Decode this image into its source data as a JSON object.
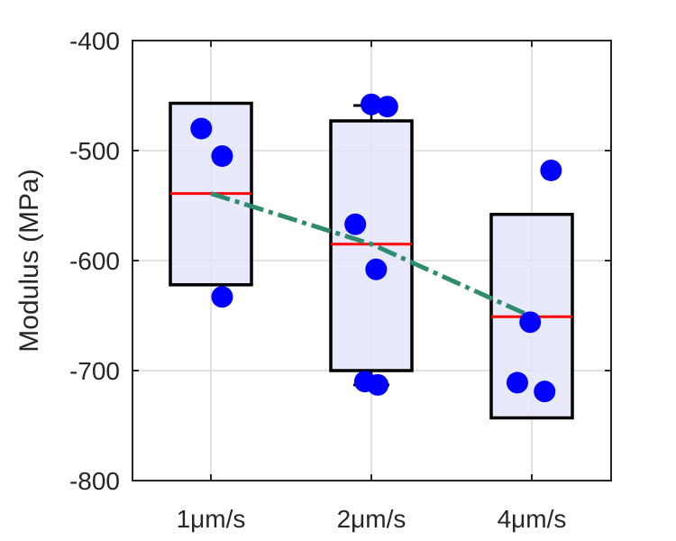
{
  "chart_data": {
    "type": "box",
    "categories": [
      "1μm/s",
      "2μm/s",
      "4μm/s"
    ],
    "xlabel": "",
    "ylabel": "Modulus (MPa)",
    "ylim": [
      -800,
      -400
    ],
    "yticks": [
      -400,
      -500,
      -600,
      -700,
      -800
    ],
    "grid": true,
    "boxes": [
      {
        "category": "1μm/s",
        "q1": -622,
        "median": -539,
        "q3": -457,
        "whisker_low": -622,
        "whisker_high": -457
      },
      {
        "category": "2μm/s",
        "q1": -700,
        "median": -585,
        "q3": -473,
        "whisker_low": -713,
        "whisker_high": -459
      },
      {
        "category": "4μm/s",
        "q1": -743,
        "median": -651,
        "q3": -558,
        "whisker_low": -743,
        "whisker_high": -558
      }
    ],
    "points": [
      {
        "category": "1μm/s",
        "values": [
          -480,
          -505,
          -633
        ],
        "offsets": [
          -0.06,
          0.07,
          0.07
        ]
      },
      {
        "category": "2μm/s",
        "values": [
          -567,
          -608,
          -710,
          -713,
          -458,
          -460
        ],
        "offsets": [
          -0.1,
          0.03,
          -0.04,
          0.04,
          0.0,
          0.1
        ]
      },
      {
        "category": "4μm/s",
        "values": [
          -518,
          -656,
          -711,
          -719
        ],
        "offsets": [
          0.12,
          -0.01,
          -0.09,
          0.08
        ]
      }
    ],
    "trend": {
      "values": [
        -539,
        -585,
        -651
      ]
    },
    "colors": {
      "box_fill": "#e5e5fb",
      "box_edge": "#000000",
      "median": "#ff0000",
      "points": "#0000ff",
      "trend": "#2e8b6e",
      "grid": "#d9d9d9",
      "axis": "#262626"
    }
  }
}
